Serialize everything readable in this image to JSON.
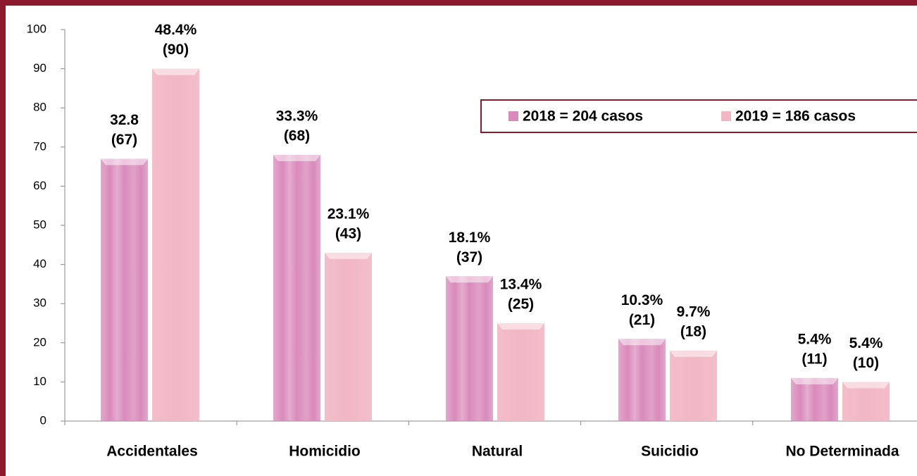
{
  "chart_data": {
    "type": "bar",
    "categories": [
      "Accidentales",
      "Homicidio",
      "Natural",
      "Suicidio",
      "No Determinada"
    ],
    "series": [
      {
        "name": "2018 =  204 casos",
        "color": "#d98abb",
        "values": [
          67,
          68,
          37,
          21,
          11
        ],
        "value_labels": [
          [
            "32.8",
            "(67)"
          ],
          [
            "33.3%",
            "(68)"
          ],
          [
            "18.1%",
            "(37)"
          ],
          [
            "10.3%",
            "(21)"
          ],
          [
            "5.4%",
            "(11)"
          ]
        ]
      },
      {
        "name": "2019 = 186 casos",
        "color": "#f2b6c4",
        "values": [
          90,
          43,
          25,
          18,
          10
        ],
        "value_labels": [
          [
            "48.4%",
            "(90)"
          ],
          [
            "23.1%",
            "(43)"
          ],
          [
            "13.4%",
            "(25)"
          ],
          [
            "9.7%",
            "(18)"
          ],
          [
            "5.4%",
            "(10)"
          ]
        ]
      }
    ],
    "ylim": [
      0,
      100
    ],
    "yticks": [
      0,
      10,
      20,
      30,
      40,
      50,
      60,
      70,
      80,
      90,
      100
    ],
    "grid": false
  }
}
